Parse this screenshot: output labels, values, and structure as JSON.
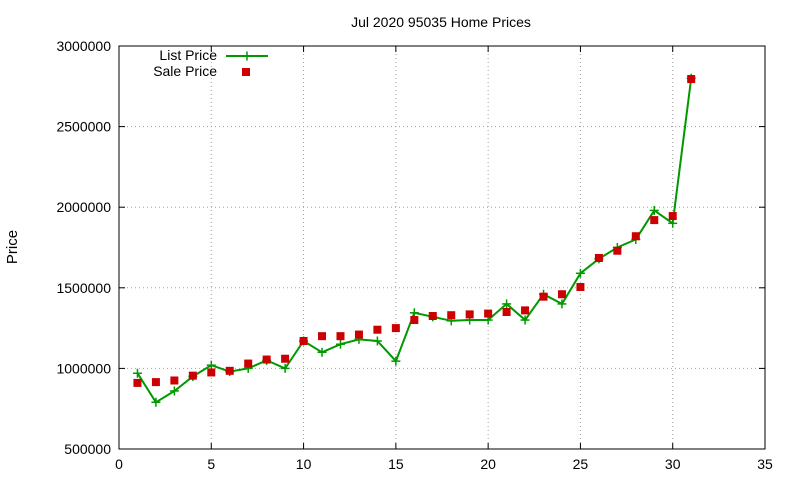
{
  "chart_data": {
    "type": "line",
    "title": "Jul 2020 95035 Home Prices",
    "xlabel": "",
    "ylabel": "Price",
    "xlim": [
      0,
      35
    ],
    "ylim": [
      500000,
      3000000
    ],
    "x_ticks": [
      0,
      5,
      10,
      15,
      20,
      25,
      30,
      35
    ],
    "y_ticks": [
      500000,
      1000000,
      1500000,
      2000000,
      2500000,
      3000000
    ],
    "grid": true,
    "legend_position": "top-left",
    "series": [
      {
        "name": "List Price",
        "style": "line-with-plus-markers",
        "color": "#009900",
        "points": [
          [
            1,
            970000
          ],
          [
            2,
            790000
          ],
          [
            3,
            860000
          ],
          [
            4,
            950000
          ],
          [
            5,
            1020000
          ],
          [
            6,
            980000
          ],
          [
            7,
            1000000
          ],
          [
            8,
            1050000
          ],
          [
            9,
            1000000
          ],
          [
            10,
            1170000
          ],
          [
            11,
            1100000
          ],
          [
            12,
            1150000
          ],
          [
            13,
            1180000
          ],
          [
            14,
            1170000
          ],
          [
            15,
            1045000
          ],
          [
            16,
            1345000
          ],
          [
            17,
            1320000
          ],
          [
            18,
            1295000
          ],
          [
            19,
            1300000
          ],
          [
            20,
            1300000
          ],
          [
            21,
            1400000
          ],
          [
            22,
            1300000
          ],
          [
            23,
            1460000
          ],
          [
            24,
            1400000
          ],
          [
            25,
            1590000
          ],
          [
            26,
            1680000
          ],
          [
            27,
            1750000
          ],
          [
            28,
            1800000
          ],
          [
            29,
            1980000
          ],
          [
            30,
            1900000
          ],
          [
            31,
            2800000
          ]
        ]
      },
      {
        "name": "Sale Price",
        "style": "square-markers",
        "color": "#cc0000",
        "points": [
          [
            1,
            910000
          ],
          [
            2,
            915000
          ],
          [
            3,
            925000
          ],
          [
            4,
            955000
          ],
          [
            5,
            975000
          ],
          [
            6,
            985000
          ],
          [
            7,
            1030000
          ],
          [
            8,
            1055000
          ],
          [
            9,
            1060000
          ],
          [
            10,
            1170000
          ],
          [
            11,
            1200000
          ],
          [
            12,
            1200000
          ],
          [
            13,
            1210000
          ],
          [
            14,
            1240000
          ],
          [
            15,
            1250000
          ],
          [
            16,
            1300000
          ],
          [
            17,
            1325000
          ],
          [
            18,
            1330000
          ],
          [
            19,
            1335000
          ],
          [
            20,
            1340000
          ],
          [
            21,
            1350000
          ],
          [
            22,
            1360000
          ],
          [
            23,
            1445000
          ],
          [
            24,
            1460000
          ],
          [
            25,
            1505000
          ],
          [
            26,
            1685000
          ],
          [
            27,
            1730000
          ],
          [
            28,
            1820000
          ],
          [
            29,
            1920000
          ],
          [
            30,
            1945000
          ],
          [
            31,
            2795000
          ]
        ]
      }
    ]
  }
}
